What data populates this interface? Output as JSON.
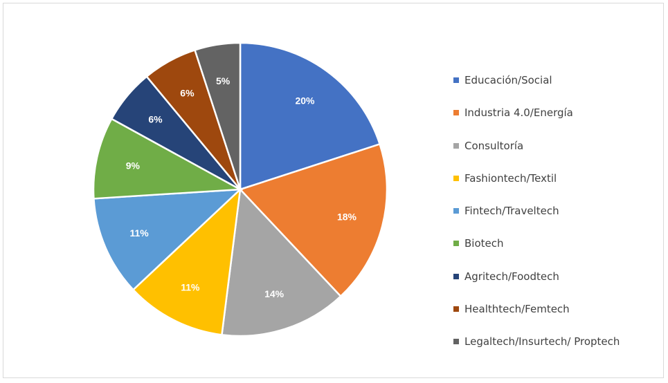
{
  "chart_data": {
    "type": "pie",
    "title": "",
    "legend_position": "right",
    "slices": [
      {
        "label": "Educación/Social",
        "value": 20,
        "display": "20%",
        "color": "#4472c4"
      },
      {
        "label": "Industria 4.0/Energía",
        "value": 18,
        "display": "18%",
        "color": "#ed7d31"
      },
      {
        "label": "Consultoría",
        "value": 14,
        "display": "14%",
        "color": "#a5a5a5"
      },
      {
        "label": "Fashiontech/Textil",
        "value": 11,
        "display": "11%",
        "color": "#ffc000"
      },
      {
        "label": "Fintech/Traveltech",
        "value": 11,
        "display": "11%",
        "color": "#5b9bd5"
      },
      {
        "label": "Biotech",
        "value": 9,
        "display": "9%",
        "color": "#70ad47"
      },
      {
        "label": "Agritech/Foodtech",
        "value": 6,
        "display": "6%",
        "color": "#264478"
      },
      {
        "label": "Healthtech/Femtech",
        "value": 6,
        "display": "6%",
        "color": "#9e480e"
      },
      {
        "label": "Legaltech/Insurtech/ Proptech",
        "value": 5,
        "display": "5%",
        "color": "#636363"
      }
    ]
  }
}
